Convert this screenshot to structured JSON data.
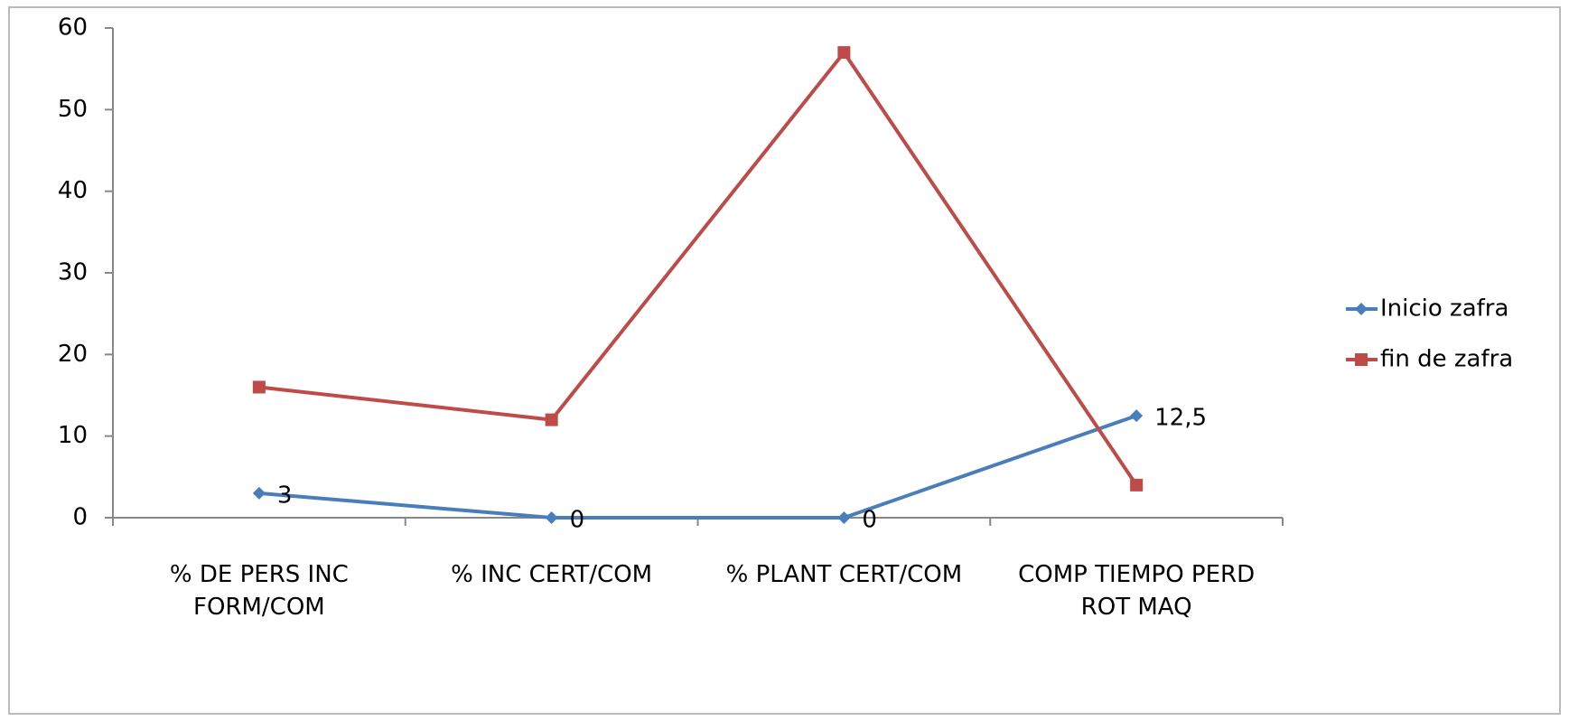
{
  "chart_data": {
    "type": "line",
    "categories": [
      "% DE PERS INC FORM/COM",
      "% INC CERT/COM",
      "% PLANT CERT/COM",
      "COMP TIEMPO PERD ROT MAQ"
    ],
    "series": [
      {
        "name": "Inicio zafra",
        "color": "#4a7ebb",
        "marker": "diamond",
        "values": [
          3,
          0,
          0,
          12.5
        ],
        "value_labels": [
          "3",
          "0",
          "0",
          "12,5"
        ]
      },
      {
        "name": "fin de zafra",
        "color": "#be4b48",
        "marker": "square",
        "values": [
          16,
          12,
          57,
          4
        ]
      }
    ],
    "ylim": [
      0,
      60
    ],
    "yticks": [
      0,
      10,
      20,
      30,
      40,
      50,
      60
    ],
    "grid": false,
    "legend": "right"
  }
}
